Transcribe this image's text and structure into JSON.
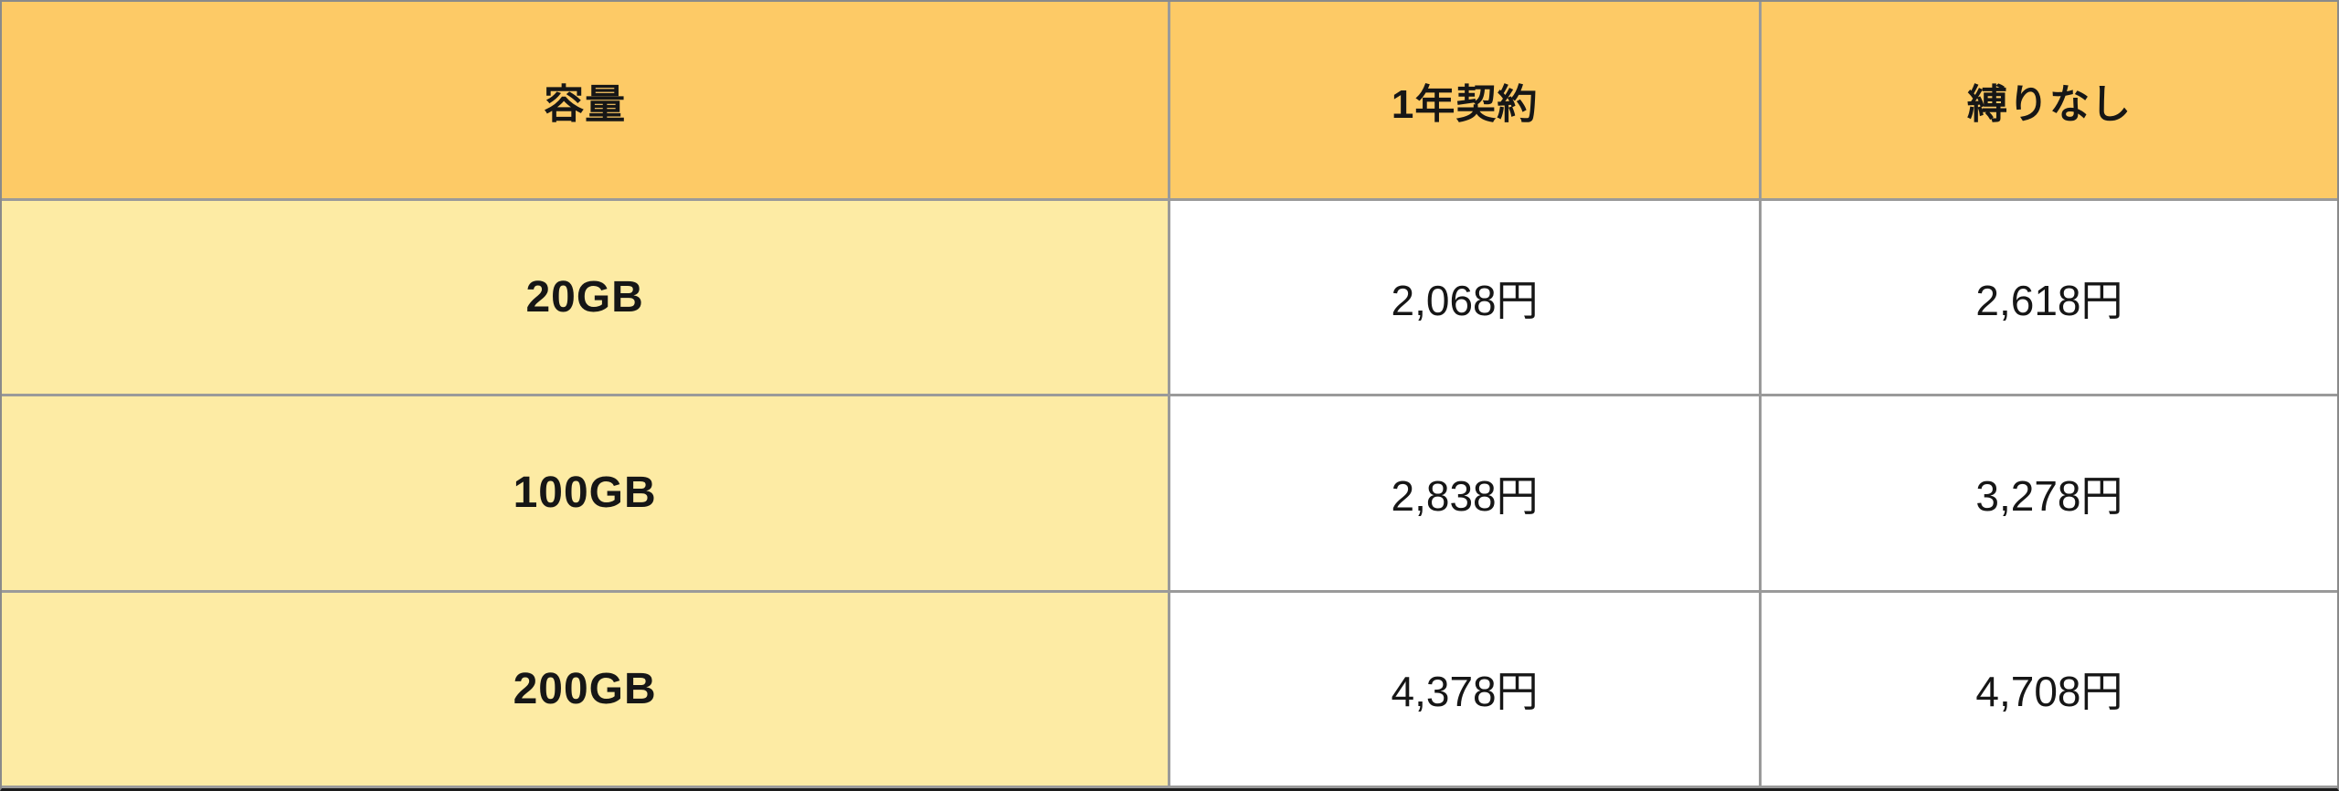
{
  "table": {
    "columns": [
      {
        "label": "容量"
      },
      {
        "label": "1年契約"
      },
      {
        "label": "縛りなし"
      }
    ],
    "rows": [
      {
        "capacity": "20GB",
        "one_year": "2,068円",
        "no_contract": "2,618円"
      },
      {
        "capacity": "100GB",
        "one_year": "2,838円",
        "no_contract": "3,278円"
      },
      {
        "capacity": "200GB",
        "one_year": "4,378円",
        "no_contract": "4,708円"
      }
    ],
    "colors": {
      "header_bg": "#FDCA66",
      "capacity_bg": "#FDEBA4",
      "cell_bg": "#FFFFFF",
      "border": "#9A9A9A",
      "outer_border": "#8A8A8A",
      "bottom_edge": "#1C1C1C",
      "text": "#161616"
    }
  },
  "chart_data": {
    "type": "table",
    "title": "",
    "columns": [
      "容量",
      "1年契約",
      "縛りなし"
    ],
    "rows": [
      [
        "20GB",
        "2,068円",
        "2,618円"
      ],
      [
        "100GB",
        "2,838円",
        "3,278円"
      ],
      [
        "200GB",
        "4,378円",
        "4,708円"
      ]
    ],
    "categories": [
      "20GB",
      "100GB",
      "200GB"
    ],
    "series": [
      {
        "name": "1年契約",
        "values_yen": [
          2068,
          2838,
          4378
        ]
      },
      {
        "name": "縛りなし",
        "values_yen": [
          2618,
          3278,
          4708
        ]
      }
    ],
    "currency": "JPY",
    "layout": {
      "header_fill": "#FDCA66",
      "first_column_fill": "#FDEBA4",
      "grid": true
    }
  }
}
